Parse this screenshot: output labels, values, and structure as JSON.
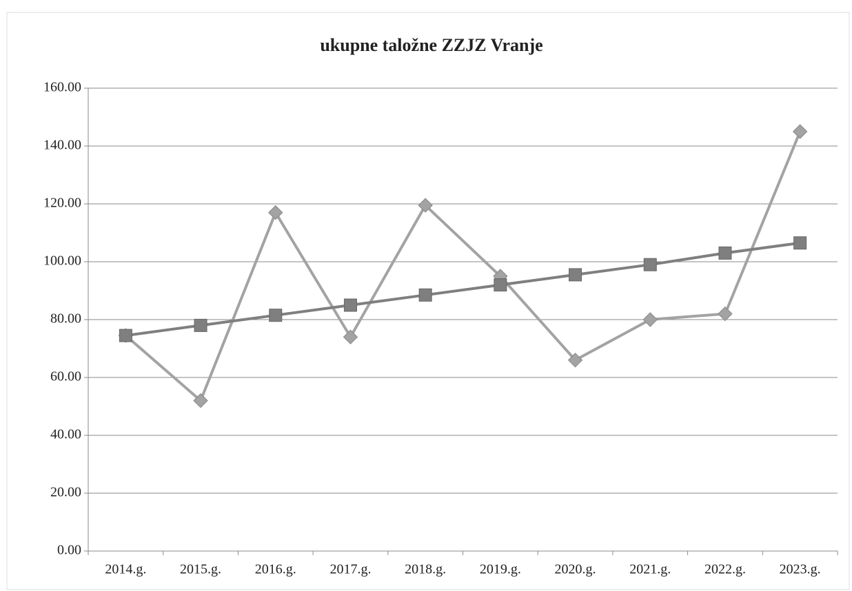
{
  "chart_data": {
    "type": "line",
    "title": "ukupne taložne ZZJZ Vranje",
    "categories": [
      "2014.g.",
      "2015.g.",
      "2016.g.",
      "2017.g.",
      "2018.g.",
      "2019.g.",
      "2020.g.",
      "2021.g.",
      "2022.g.",
      "2023.g."
    ],
    "series": [
      {
        "color": "#a3a3a3",
        "marker": "diamond",
        "values": [
          74.5,
          52,
          117,
          74,
          119.5,
          95,
          66,
          80,
          82,
          145
        ]
      },
      {
        "color": "#7f7f7f",
        "marker": "square",
        "values": [
          74.5,
          78,
          81.5,
          85,
          88.5,
          92,
          95.5,
          99,
          103,
          106.5
        ]
      }
    ],
    "ylim": [
      0,
      160
    ],
    "yticks": [
      {
        "value": 0,
        "label": "0.00"
      },
      {
        "value": 20,
        "label": "20.00"
      },
      {
        "value": 40,
        "label": "40.00"
      },
      {
        "value": 60,
        "label": "60.00"
      },
      {
        "value": 80,
        "label": "80.00"
      },
      {
        "value": 100,
        "label": "100.00"
      },
      {
        "value": 120,
        "label": "120.00"
      },
      {
        "value": 140,
        "label": "140.00"
      },
      {
        "value": 160,
        "label": "160.00"
      }
    ],
    "grid": true
  }
}
